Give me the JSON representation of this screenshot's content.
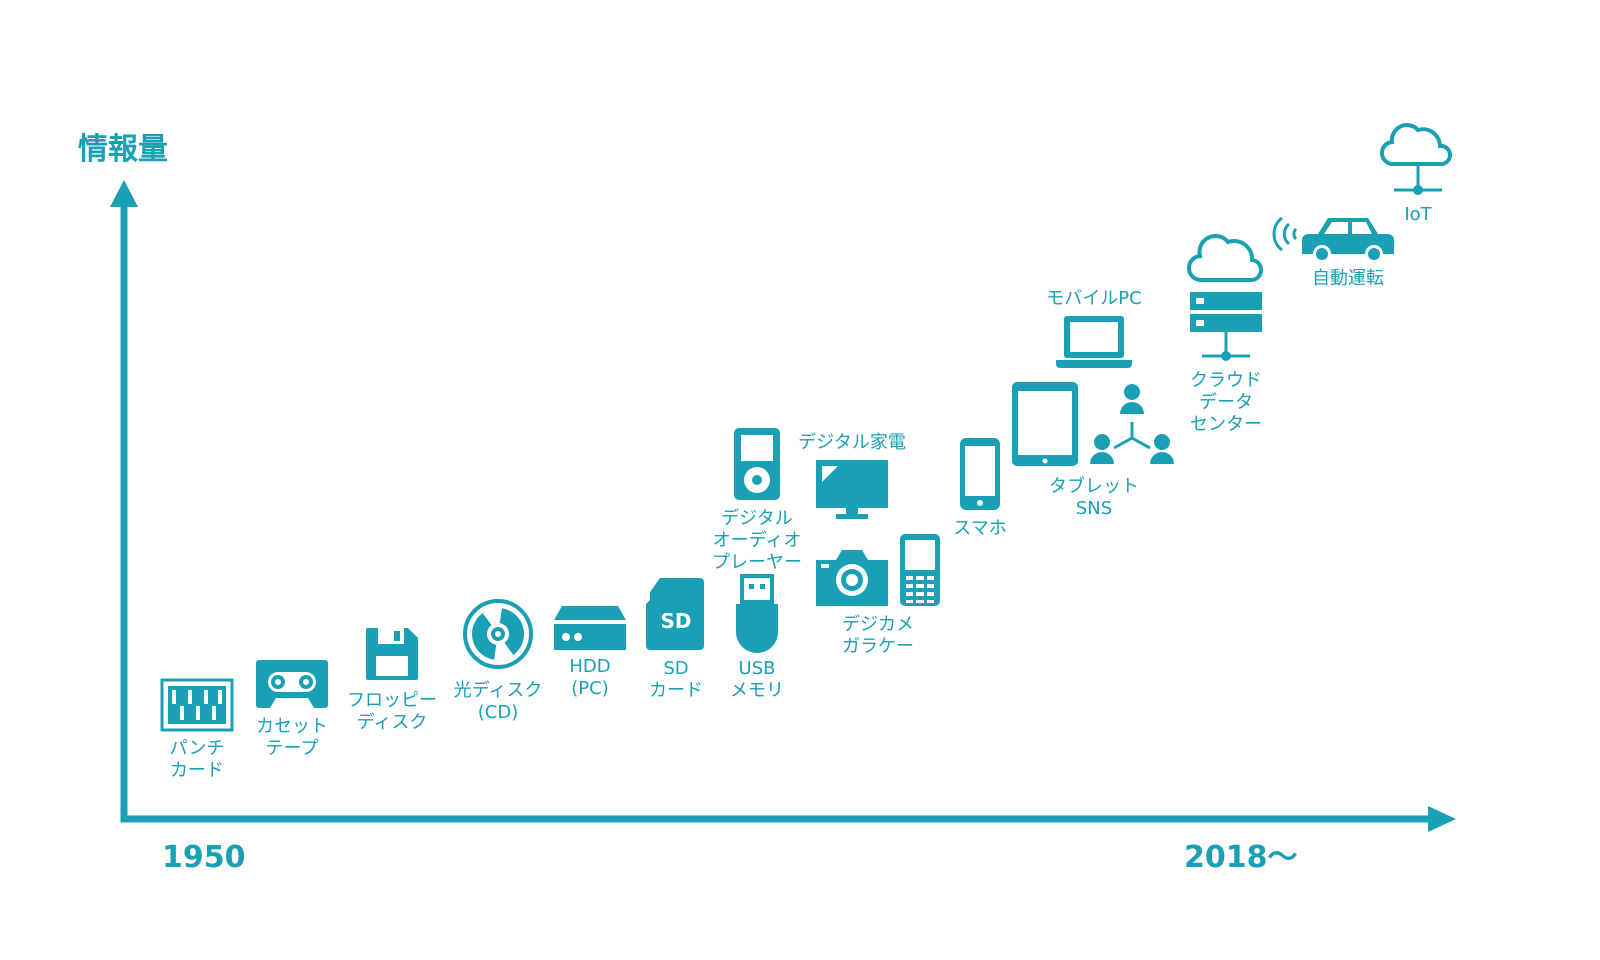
{
  "colors": {
    "accent": "#1aa0b4",
    "background": "#ffffff"
  },
  "axis": {
    "y_label": "情報量",
    "x_start": "1950",
    "x_end": "2018〜"
  },
  "items": [
    {
      "id": "punch-card",
      "icon": "punch-card-icon",
      "label": "パンチ\nカード"
    },
    {
      "id": "cassette-tape",
      "icon": "cassette-tape-icon",
      "label": "カセット\nテープ"
    },
    {
      "id": "floppy-disk",
      "icon": "floppy-disk-icon",
      "label": "フロッピー\nディスク"
    },
    {
      "id": "optical-disc",
      "icon": "optical-disc-icon",
      "label": "光ディスク\n(CD)"
    },
    {
      "id": "hdd",
      "icon": "hdd-icon",
      "label": "HDD\n(PC)"
    },
    {
      "id": "sd-card",
      "icon": "sd-card-icon",
      "label": "SD\nカード",
      "icon_text": "SD"
    },
    {
      "id": "usb-memory",
      "icon": "usb-memory-icon",
      "label": "USB\nメモリ"
    },
    {
      "id": "digital-audio-player",
      "icon": "audio-player-icon",
      "label": "デジタル\nオーディオ\nプレーヤー"
    },
    {
      "id": "digital-appliance",
      "icon": "monitor-icon",
      "label": "デジタル家電"
    },
    {
      "id": "digicam-garake",
      "icon": "camera-icon",
      "icon2": "feature-phone-icon",
      "label": "デジカメ\nガラケー"
    },
    {
      "id": "smartphone",
      "icon": "smartphone-icon",
      "label": "スマホ"
    },
    {
      "id": "tablet-sns",
      "icon": "tablet-icon",
      "icon2": "sns-network-icon",
      "label": "タブレット\nSNS"
    },
    {
      "id": "mobile-pc",
      "icon": "laptop-icon",
      "label": "モバイルPC"
    },
    {
      "id": "cloud-datacenter",
      "icon": "cloud-server-icon",
      "label": "クラウド\nデータ\nセンター"
    },
    {
      "id": "autonomous-driving",
      "icon": "car-icon",
      "label": "自動運転"
    },
    {
      "id": "iot",
      "icon": "iot-cloud-icon",
      "label": "IoT"
    }
  ]
}
